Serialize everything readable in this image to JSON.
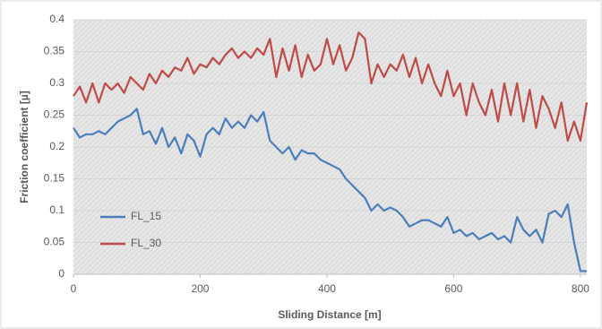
{
  "chart_data": {
    "type": "line",
    "x_label": "Sliding Distance [m]",
    "y_label": "Friction coefficient [µ]",
    "x": [
      0,
      10,
      20,
      30,
      40,
      50,
      60,
      70,
      80,
      90,
      100,
      110,
      120,
      130,
      140,
      150,
      160,
      170,
      180,
      190,
      200,
      210,
      220,
      230,
      240,
      250,
      260,
      270,
      280,
      290,
      300,
      310,
      320,
      330,
      340,
      350,
      360,
      370,
      380,
      390,
      400,
      410,
      420,
      430,
      440,
      450,
      460,
      470,
      480,
      490,
      500,
      510,
      520,
      530,
      540,
      550,
      560,
      570,
      580,
      590,
      600,
      610,
      620,
      630,
      640,
      650,
      660,
      670,
      680,
      690,
      700,
      710,
      720,
      730,
      740,
      750,
      760,
      770,
      780,
      790,
      800,
      810
    ],
    "series": [
      {
        "name": "FL_15",
        "color": "#4a7ebb",
        "values": [
          0.23,
          0.215,
          0.22,
          0.22,
          0.225,
          0.22,
          0.23,
          0.24,
          0.245,
          0.25,
          0.26,
          0.22,
          0.225,
          0.205,
          0.23,
          0.2,
          0.215,
          0.19,
          0.22,
          0.21,
          0.185,
          0.22,
          0.23,
          0.22,
          0.245,
          0.23,
          0.24,
          0.23,
          0.25,
          0.24,
          0.255,
          0.21,
          0.2,
          0.19,
          0.2,
          0.18,
          0.195,
          0.19,
          0.19,
          0.18,
          0.175,
          0.17,
          0.165,
          0.15,
          0.14,
          0.13,
          0.12,
          0.1,
          0.11,
          0.1,
          0.105,
          0.1,
          0.09,
          0.075,
          0.08,
          0.085,
          0.085,
          0.08,
          0.075,
          0.09,
          0.065,
          0.07,
          0.06,
          0.065,
          0.055,
          0.06,
          0.065,
          0.055,
          0.06,
          0.05,
          0.09,
          0.07,
          0.06,
          0.07,
          0.05,
          0.095,
          0.1,
          0.09,
          0.11,
          0.05,
          0.005,
          0.005
        ]
      },
      {
        "name": "FL_30",
        "color": "#be4b48",
        "values": [
          0.28,
          0.295,
          0.27,
          0.3,
          0.27,
          0.3,
          0.29,
          0.3,
          0.285,
          0.31,
          0.3,
          0.29,
          0.315,
          0.3,
          0.32,
          0.31,
          0.325,
          0.32,
          0.34,
          0.315,
          0.33,
          0.325,
          0.34,
          0.33,
          0.345,
          0.355,
          0.34,
          0.35,
          0.34,
          0.355,
          0.345,
          0.37,
          0.31,
          0.355,
          0.32,
          0.36,
          0.31,
          0.345,
          0.32,
          0.33,
          0.37,
          0.33,
          0.36,
          0.32,
          0.34,
          0.38,
          0.37,
          0.3,
          0.33,
          0.31,
          0.33,
          0.32,
          0.345,
          0.31,
          0.34,
          0.3,
          0.33,
          0.3,
          0.28,
          0.32,
          0.28,
          0.3,
          0.25,
          0.3,
          0.27,
          0.25,
          0.29,
          0.24,
          0.3,
          0.25,
          0.3,
          0.24,
          0.29,
          0.23,
          0.28,
          0.26,
          0.23,
          0.27,
          0.21,
          0.24,
          0.21,
          0.27
        ]
      }
    ],
    "xlim": [
      0,
      810
    ],
    "xticks": [
      0,
      200,
      400,
      600,
      800
    ],
    "ylim": [
      0,
      0.4
    ],
    "yticks": [
      0,
      0.05,
      0.1,
      0.15,
      0.2,
      0.25,
      0.3,
      0.35,
      0.4
    ],
    "legend": "lower left"
  }
}
